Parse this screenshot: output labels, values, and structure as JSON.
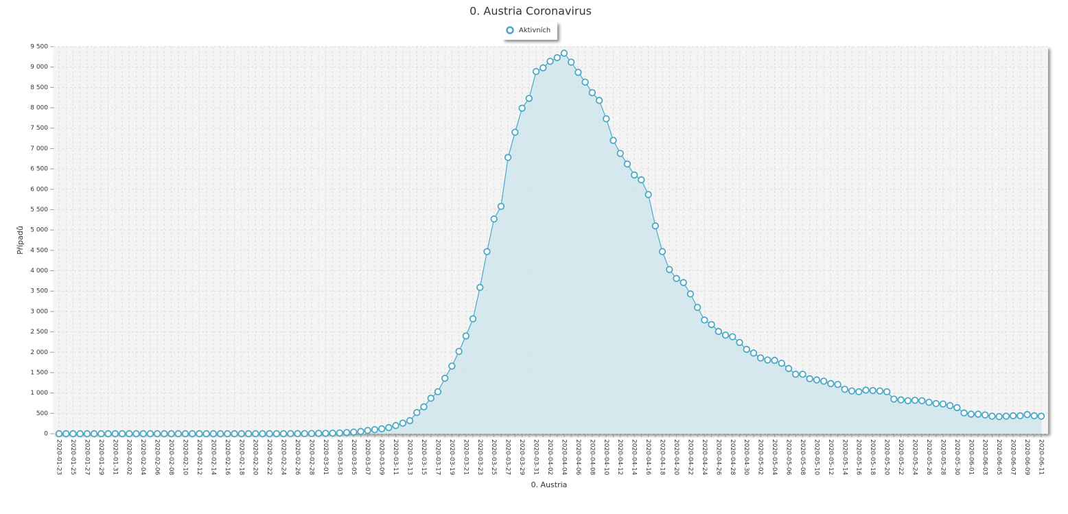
{
  "chart_data": {
    "type": "area",
    "title": "0. Austria Coronavirus",
    "x_label": "0. Austria",
    "y_label": "Případů",
    "categories": [
      "2020-01-23",
      null,
      "2020-01-25",
      null,
      "2020-01-27",
      null,
      "2020-01-29",
      null,
      "2020-01-31",
      null,
      "2020-02-02",
      null,
      "2020-02-04",
      null,
      "2020-02-06",
      null,
      "2020-02-08",
      null,
      "2020-02-10",
      null,
      "2020-02-12",
      null,
      "2020-02-14",
      null,
      "2020-02-16",
      null,
      "2020-02-18",
      null,
      "2020-02-20",
      null,
      "2020-02-22",
      null,
      "2020-02-24",
      null,
      "2020-02-26",
      null,
      "2020-02-28",
      null,
      "2020-03-01",
      null,
      "2020-03-03",
      null,
      "2020-03-05",
      null,
      "2020-03-07",
      null,
      "2020-03-09",
      null,
      "2020-03-11",
      null,
      "2020-03-13",
      null,
      "2020-03-15",
      null,
      "2020-03-17",
      null,
      "2020-03-19",
      null,
      "2020-03-21",
      null,
      "2020-03-23",
      null,
      "2020-03-25",
      null,
      "2020-03-27",
      null,
      "2020-03-29",
      null,
      "2020-03-31",
      null,
      "2020-04-02",
      null,
      "2020-04-04",
      null,
      "2020-04-06",
      null,
      "2020-04-08",
      null,
      "2020-04-10",
      null,
      "2020-04-12",
      null,
      "2020-04-14",
      null,
      "2020-04-16",
      null,
      "2020-04-18",
      null,
      "2020-04-20",
      null,
      "2020-04-22",
      null,
      "2020-04-24",
      null,
      "2020-04-26",
      null,
      "2020-04-28",
      null,
      "2020-04-30",
      null,
      "2020-05-02",
      null,
      "2020-05-04",
      null,
      "2020-05-06",
      null,
      "2020-05-08",
      null,
      "2020-05-10",
      null,
      "2020-05-12",
      null,
      "2020-05-14",
      null,
      "2020-05-16",
      null,
      "2020-05-18",
      null,
      "2020-05-20",
      null,
      "2020-05-22",
      null,
      "2020-05-24",
      null,
      "2020-05-26",
      null,
      "2020-05-28",
      null,
      "2020-05-30",
      null,
      "2020-06-01",
      null,
      "2020-06-03",
      null,
      "2020-06-05",
      null,
      "2020-06-07",
      null,
      "2020-06-09",
      null,
      "2020-06-11"
    ],
    "series": [
      {
        "name": "Aktivních",
        "color": "#4aa8c6",
        "fill": "#cfe5ec",
        "values": [
          0,
          0,
          0,
          0,
          0,
          0,
          0,
          0,
          0,
          0,
          0,
          0,
          0,
          0,
          0,
          0,
          0,
          0,
          0,
          0,
          0,
          0,
          0,
          0,
          0,
          0,
          0,
          0,
          0,
          0,
          0,
          0,
          0,
          2,
          2,
          3,
          5,
          9,
          10,
          14,
          18,
          29,
          40,
          55,
          80,
          100,
          120,
          150,
          200,
          260,
          320,
          520,
          660,
          870,
          1030,
          1360,
          1660,
          2020,
          2400,
          2820,
          3590,
          4470,
          5270,
          5580,
          6780,
          7400,
          7990,
          8230,
          8890,
          8980,
          9140,
          9230,
          9340,
          9120,
          8870,
          8630,
          8370,
          8180,
          7730,
          7200,
          6880,
          6620,
          6350,
          6230,
          5870,
          5100,
          4470,
          4030,
          3810,
          3710,
          3430,
          3100,
          2790,
          2680,
          2510,
          2420,
          2380,
          2240,
          2070,
          1980,
          1860,
          1810,
          1800,
          1730,
          1600,
          1460,
          1460,
          1350,
          1320,
          1290,
          1230,
          1210,
          1090,
          1050,
          1030,
          1070,
          1060,
          1050,
          1030,
          850,
          830,
          810,
          820,
          810,
          770,
          740,
          730,
          690,
          640,
          510,
          480,
          480,
          460,
          430,
          420,
          430,
          440,
          440,
          470,
          440,
          430
        ]
      }
    ],
    "ylim": [
      0,
      9500
    ],
    "yticks": [
      0,
      500,
      {
        "value": 1000,
        "label": "1 000"
      },
      {
        "value": 1500,
        "label": "1 500"
      },
      {
        "value": 2000,
        "label": "2 000"
      },
      {
        "value": 2500,
        "label": "2 500"
      },
      {
        "value": 3000,
        "label": "3 000"
      },
      {
        "value": 3500,
        "label": "3 500"
      },
      {
        "value": 4000,
        "label": "4 000"
      },
      {
        "value": 4500,
        "label": "4 500"
      },
      {
        "value": 5000,
        "label": "5 000"
      },
      {
        "value": 5500,
        "label": "5 500"
      },
      {
        "value": 6000,
        "label": "6 000"
      },
      {
        "value": 6500,
        "label": "6 500"
      },
      {
        "value": 7000,
        "label": "7 000"
      },
      {
        "value": 7500,
        "label": "7 500"
      },
      {
        "value": 8000,
        "label": "8 000"
      },
      {
        "value": 8500,
        "label": "8 500"
      },
      {
        "value": 9000,
        "label": "9 000"
      },
      {
        "value": 9500,
        "label": "9 500"
      }
    ],
    "grid": true
  }
}
